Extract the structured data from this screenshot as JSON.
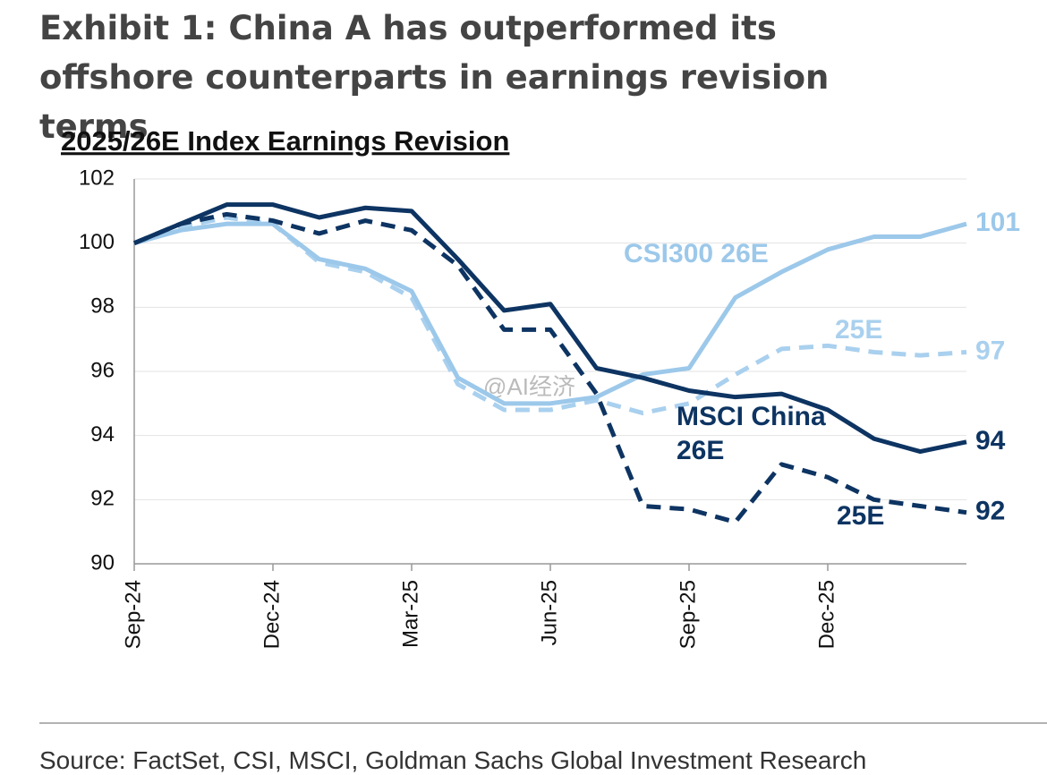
{
  "title": "Exhibit 1: China A has outperformed its offshore counterparts in earnings revision terms",
  "source": "Source: FactSet, CSI, MSCI, Goldman Sachs Global Investment Research",
  "watermark": "@AI经济",
  "chart_data": {
    "type": "line",
    "title": "2025/26E Index Earnings Revision",
    "categories": [
      "Sep-24",
      null,
      null,
      "Dec-24",
      null,
      null,
      "Mar-25",
      null,
      null,
      "Jun-25",
      null,
      null,
      "Sep-25",
      null,
      null,
      "Dec-25",
      null,
      null,
      null
    ],
    "ylim": [
      90,
      102
    ],
    "yticks": [
      90,
      92,
      94,
      96,
      98,
      100,
      102
    ],
    "grid": true,
    "series": [
      {
        "name": "CSI300 26E",
        "color": "#9cc8ea",
        "dashed": false,
        "values": [
          100.0,
          100.4,
          100.6,
          100.6,
          99.5,
          99.2,
          98.5,
          95.8,
          95.0,
          95.0,
          95.2,
          95.9,
          96.1,
          98.3,
          99.1,
          99.8,
          100.2,
          100.2,
          100.6
        ],
        "value_labels": [
          null,
          null,
          null,
          null,
          null,
          null,
          null,
          null,
          null,
          null,
          null,
          null,
          null,
          null,
          null,
          null,
          null,
          null,
          "101"
        ]
      },
      {
        "name": "25E",
        "color": "#a9d0ee",
        "dashed": true,
        "values": [
          100.0,
          100.5,
          100.8,
          100.6,
          99.4,
          99.1,
          98.3,
          95.6,
          94.8,
          94.8,
          95.1,
          94.7,
          95.0,
          95.9,
          96.7,
          96.8,
          96.6,
          96.5,
          96.6
        ],
        "value_labels": [
          null,
          null,
          null,
          null,
          null,
          null,
          null,
          null,
          null,
          null,
          null,
          null,
          null,
          null,
          null,
          null,
          null,
          null,
          "97"
        ]
      },
      {
        "name": "MSCI China 26E",
        "color": "#0d3462",
        "dashed": false,
        "values": [
          100.0,
          100.6,
          101.2,
          101.2,
          100.8,
          101.1,
          101.0,
          99.5,
          97.9,
          98.1,
          96.1,
          95.8,
          95.4,
          95.2,
          95.3,
          94.8,
          93.9,
          93.5,
          93.8
        ],
        "value_labels": [
          null,
          null,
          null,
          null,
          null,
          null,
          null,
          null,
          null,
          null,
          null,
          null,
          null,
          null,
          null,
          null,
          null,
          null,
          "94"
        ]
      },
      {
        "name": "25E",
        "color": "#0d3462",
        "dashed": true,
        "values": [
          100.0,
          100.6,
          100.9,
          100.7,
          100.3,
          100.7,
          100.4,
          99.3,
          97.3,
          97.3,
          95.3,
          91.8,
          91.7,
          91.3,
          93.1,
          92.7,
          92.0,
          91.8,
          91.6
        ],
        "value_labels": [
          null,
          null,
          null,
          null,
          null,
          null,
          null,
          null,
          null,
          null,
          null,
          null,
          null,
          null,
          null,
          null,
          null,
          null,
          "92"
        ]
      }
    ]
  }
}
